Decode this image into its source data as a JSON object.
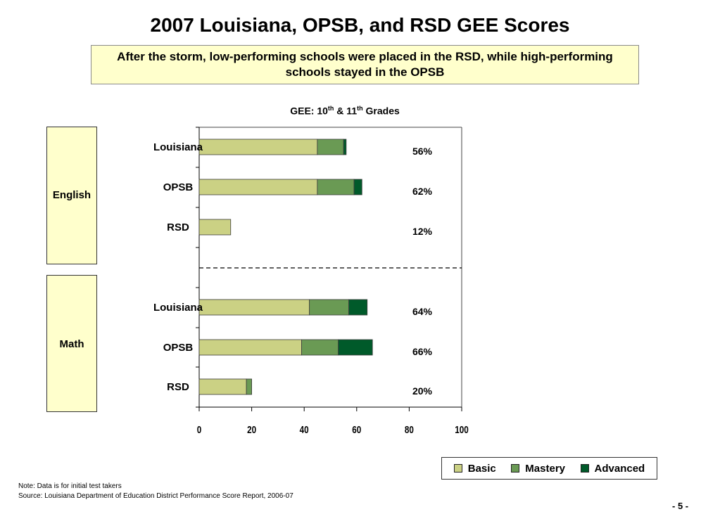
{
  "title": "2007 Louisiana, OPSB, and RSD GEE Scores",
  "callout": "After the storm, low-performing schools were placed in the RSD, while high-performing schools stayed in the OPSB",
  "chart_title": {
    "prefix": "GEE: 10",
    "sup1": "th",
    "mid": " & 11",
    "sup2": "th",
    "suffix": " Grades"
  },
  "chart_data": {
    "type": "bar",
    "orientation": "horizontal",
    "stacked": true,
    "groups": [
      {
        "label": "English",
        "categories": [
          "Louisiana",
          "OPSB",
          "RSD"
        ],
        "totals": [
          "56%",
          "62%",
          "12%"
        ]
      },
      {
        "label": "Math",
        "categories": [
          "Louisiana",
          "OPSB",
          "RSD"
        ],
        "totals": [
          "64%",
          "66%",
          "20%"
        ]
      }
    ],
    "series": [
      {
        "name": "Basic",
        "color": "#cbd184",
        "values": [
          45,
          45,
          12,
          42,
          39,
          18
        ]
      },
      {
        "name": "Mastery",
        "color": "#6a9a54",
        "values": [
          10,
          14,
          0,
          15,
          14,
          2
        ]
      },
      {
        "name": "Advanced",
        "color": "#005a2a",
        "values": [
          1,
          3,
          0,
          7,
          13,
          0
        ]
      }
    ],
    "xlim": [
      0,
      100
    ],
    "xticks": [
      "0",
      "20",
      "40",
      "60",
      "80",
      "100"
    ],
    "grid": false,
    "legend_position": "bottom-right"
  },
  "footer": {
    "note": "Note: Data is for initial test takers",
    "source": "Source: Louisiana Department of Education District Performance Score Report, 2006-07"
  },
  "page_number": "- 5 -"
}
